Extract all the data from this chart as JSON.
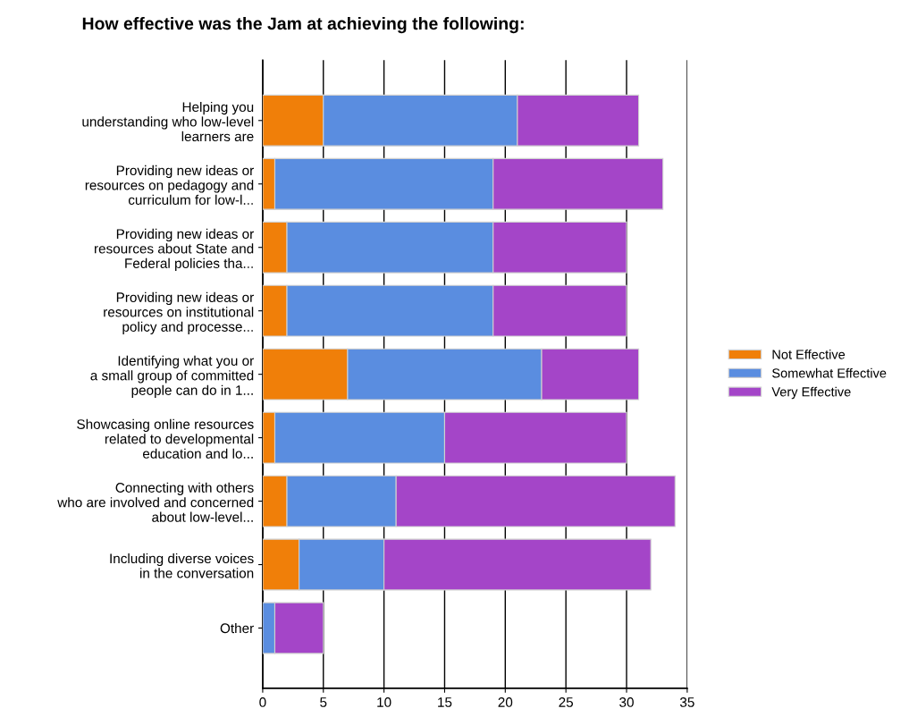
{
  "chart_data": {
    "type": "bar",
    "orientation": "horizontal",
    "stacked": true,
    "title": "How effective was the Jam at achieving the following:",
    "categories": [
      "Helping you\nunderstanding who low-level\nlearners are",
      "Providing new ideas or\nresources on pedagogy and\ncurriculum for low-l...",
      "Providing new ideas or\nresources about State and\nFederal policies tha...",
      "Providing new ideas or\nresources on institutional\npolicy and processe...",
      "Identifying what you or\na small group of committed\npeople can do in 1...",
      "Showcasing online resources\nrelated to developmental\neducation and lo...",
      "Connecting with others\nwho are involved and concerned\nabout low-level...",
      "Including diverse voices\nin the conversation",
      "Other"
    ],
    "series": [
      {
        "name": "Not Effective",
        "color": "#f07f09",
        "values": [
          5,
          1,
          2,
          2,
          7,
          1,
          2,
          3,
          0
        ]
      },
      {
        "name": "Somewhat Effective",
        "color": "#5a8de0",
        "values": [
          16,
          18,
          17,
          17,
          16,
          14,
          9,
          7,
          1
        ]
      },
      {
        "name": "Very Effective",
        "color": "#a445c8",
        "values": [
          10,
          14,
          11,
          11,
          8,
          15,
          23,
          22,
          4
        ]
      }
    ],
    "xlim": [
      0,
      35
    ],
    "xticks": [
      0,
      5,
      10,
      15,
      20,
      25,
      30,
      35
    ],
    "grid": "x",
    "legend": "right"
  }
}
